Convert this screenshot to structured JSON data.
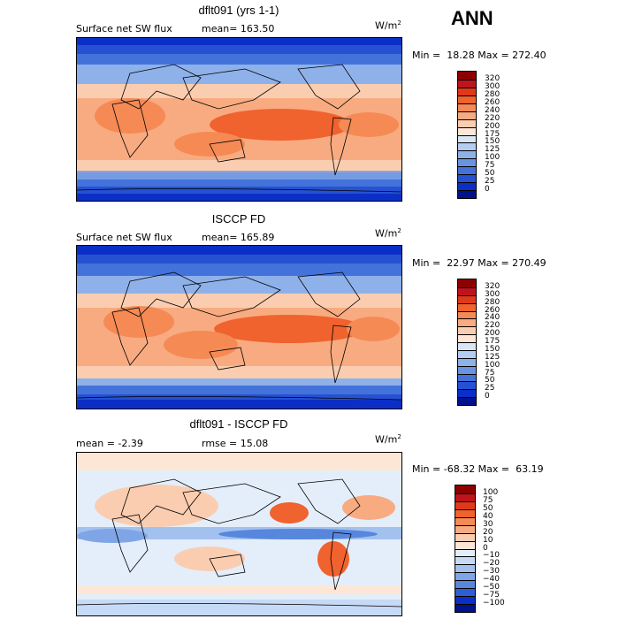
{
  "season": "ANN",
  "panels": [
    {
      "title": "dflt091 (yrs 1-1)",
      "left_label": "Surface net SW flux",
      "stat_label": "mean= 163.50",
      "units": "W/m",
      "units_exp": "2",
      "minmax": "Min =  18.28 Max = 272.40",
      "levels": [
        "320",
        "300",
        "280",
        "260",
        "240",
        "220",
        "200",
        "175",
        "150",
        "125",
        "100",
        "75",
        "50",
        "25",
        "0"
      ],
      "colors": [
        "#8b0000",
        "#c0141c",
        "#e0391a",
        "#f0622e",
        "#f58a55",
        "#f8ab80",
        "#fbcdb0",
        "#fde6d6",
        "#d9e6f7",
        "#b5cdf0",
        "#8fb1ea",
        "#6a93e0",
        "#4372db",
        "#2651d2",
        "#0b2fc6",
        "#00118c"
      ]
    },
    {
      "title": "ISCCP FD",
      "left_label": "Surface net SW flux",
      "stat_label": "mean= 165.89",
      "units": "W/m",
      "units_exp": "2",
      "minmax": "Min =  22.97 Max = 270.49",
      "levels": [
        "320",
        "300",
        "280",
        "260",
        "240",
        "220",
        "200",
        "175",
        "150",
        "125",
        "100",
        "75",
        "50",
        "25",
        "0"
      ],
      "colors": [
        "#8b0000",
        "#c0141c",
        "#e0391a",
        "#f0622e",
        "#f58a55",
        "#f8ab80",
        "#fbcdb0",
        "#fde6d6",
        "#d9e6f7",
        "#b5cdf0",
        "#8fb1ea",
        "#6a93e0",
        "#4372db",
        "#2651d2",
        "#0b2fc6",
        "#00118c"
      ]
    },
    {
      "title": "dflt091 - ISCCP FD",
      "left_label": "mean =   -2.39",
      "stat_label": "rmse =   15.08",
      "units": "W/m",
      "units_exp": "2",
      "minmax": "Min = -68.32 Max =  63.19",
      "levels": [
        "100",
        "75",
        "50",
        "40",
        "30",
        "20",
        "10",
        "0",
        "−10",
        "−20",
        "−30",
        "−40",
        "−50",
        "−75",
        "−100"
      ],
      "colors": [
        "#8b0000",
        "#c0141c",
        "#e0391a",
        "#f0622e",
        "#f58a55",
        "#f8ab80",
        "#fbcdb0",
        "#fde6d6",
        "#e4eefa",
        "#c6daf5",
        "#a3c1ee",
        "#7fa5e6",
        "#5786dd",
        "#2f5ed3",
        "#0b2fc6",
        "#00118c"
      ]
    }
  ]
}
